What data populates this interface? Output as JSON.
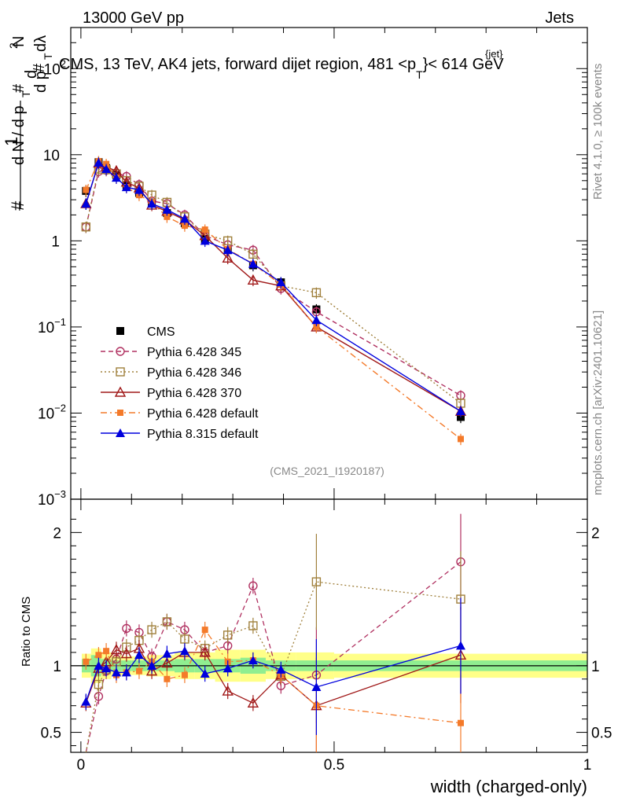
{
  "header": {
    "left": "13000 GeV pp",
    "right": "Jets",
    "subtitle_main": "CMS, 13 TeV, AK4 jets, forward dijet region, 481 <p",
    "subtitle_sup": "{jet}",
    "subtitle_sub": "T",
    "subtitle_tail": "}< 614 GeV"
  },
  "side": {
    "rivet": "Rivet 4.1.0, ≥ 100k events",
    "mcplots": "mcplots.cern.ch [arXiv:2401.10621]"
  },
  "analysis_id": "(CMS_2021_I1920187)",
  "colors": {
    "cms": "#000000",
    "p345": "#b03060",
    "p346": "#a0803c",
    "p370": "#a01818",
    "pdef": "#f47a2a",
    "p8": "#0000dd",
    "band_inner": "#90ee90",
    "band_outer": "#ffff88"
  },
  "chart_data": [
    {
      "type": "scatter",
      "panel": "main",
      "ylabel": "1/(dN/dp_T) · d²N/(dp_T dλ)",
      "yscale": "log",
      "ylim": [
        0.001,
        300
      ],
      "yticks": [
        {
          "v": 0.001,
          "mant": "10",
          "exp": "−3"
        },
        {
          "v": 0.01,
          "mant": "10",
          "exp": "−2"
        },
        {
          "v": 0.1,
          "mant": "10",
          "exp": "−1"
        },
        {
          "v": 1,
          "mant": "1",
          "exp": ""
        },
        {
          "v": 10,
          "mant": "10",
          "exp": ""
        },
        {
          "v": 100,
          "mant": "10",
          "exp": "2"
        }
      ],
      "x": [
        0.01,
        0.035,
        0.05,
        0.07,
        0.09,
        0.115,
        0.14,
        0.17,
        0.205,
        0.245,
        0.29,
        0.34,
        0.395,
        0.465,
        0.75
      ],
      "series": [
        {
          "name": "CMS",
          "key": "cms",
          "marker": "square-filled",
          "style": "none",
          "values": [
            3.8,
            8.2,
            7.0,
            5.8,
            4.4,
            3.6,
            2.7,
            2.1,
            1.6,
            1.05,
            0.78,
            0.52,
            0.33,
            0.16,
            0.009
          ]
        },
        {
          "name": "Pythia 6.428 345",
          "key": "p345",
          "marker": "circle-open",
          "style": "dashed",
          "values": [
            1.45,
            6.4,
            6.6,
            6.1,
            5.6,
            4.5,
            2.9,
            2.7,
            2.0,
            1.15,
            0.9,
            0.78,
            0.28,
            0.15,
            0.016
          ]
        },
        {
          "name": "Pythia 6.428 346",
          "key": "p346",
          "marker": "square-open",
          "style": "dotted",
          "values": [
            1.45,
            6.8,
            6.7,
            6.0,
            5.0,
            4.3,
            3.4,
            2.8,
            1.9,
            1.2,
            1.0,
            0.7,
            0.3,
            0.25,
            0.013
          ]
        },
        {
          "name": "Pythia 6.428 370",
          "key": "p370",
          "marker": "triangle-open",
          "style": "solid",
          "values": [
            2.7,
            8.0,
            7.2,
            6.5,
            4.8,
            4.1,
            2.6,
            2.2,
            1.75,
            1.15,
            0.63,
            0.35,
            0.3,
            0.1,
            0.0105
          ]
        },
        {
          "name": "Pythia 6.428 default",
          "key": "pdef",
          "marker": "square-small-filled",
          "style": "dashdot",
          "values": [
            3.9,
            8.4,
            7.8,
            5.4,
            4.2,
            3.4,
            2.8,
            1.9,
            1.5,
            1.35,
            0.8,
            0.54,
            0.31,
            0.1,
            0.005
          ]
        },
        {
          "name": "Pythia 8.315 default",
          "key": "p8",
          "marker": "triangle-filled",
          "style": "solid",
          "values": [
            2.7,
            8.1,
            6.8,
            5.4,
            4.2,
            3.9,
            2.7,
            2.3,
            1.8,
            1.0,
            0.78,
            0.54,
            0.33,
            0.12,
            0.0105
          ]
        }
      ]
    },
    {
      "type": "scatter",
      "panel": "ratio",
      "ylabel": "Ratio to CMS",
      "xlabel": "width (charged-only)",
      "xlim": [
        -0.02,
        1.0
      ],
      "ylim": [
        0.35,
        2.25
      ],
      "xticks": [
        {
          "v": 0,
          "label": "0"
        },
        {
          "v": 0.5,
          "label": "0.5"
        },
        {
          "v": 1,
          "label": "1"
        }
      ],
      "yticks": [
        {
          "v": 0.5,
          "label": "0.5"
        },
        {
          "v": 1,
          "label": "1"
        },
        {
          "v": 2,
          "label": "2"
        }
      ],
      "x": [
        0.01,
        0.035,
        0.05,
        0.07,
        0.09,
        0.115,
        0.14,
        0.17,
        0.205,
        0.245,
        0.29,
        0.34,
        0.395,
        0.465,
        0.75
      ],
      "band_edges": [
        0,
        0.02,
        0.04,
        0.06,
        0.08,
        0.1,
        0.13,
        0.155,
        0.185,
        0.225,
        0.265,
        0.315,
        0.365,
        0.425,
        0.5,
        1.0
      ],
      "band_inner": [
        0.05,
        0.08,
        0.05,
        0.04,
        0.04,
        0.04,
        0.04,
        0.04,
        0.05,
        0.05,
        0.05,
        0.06,
        0.04,
        0.04,
        0.04
      ],
      "band_outer": [
        0.09,
        0.13,
        0.1,
        0.08,
        0.07,
        0.07,
        0.08,
        0.08,
        0.1,
        0.1,
        0.12,
        0.12,
        0.1,
        0.1,
        0.09
      ],
      "series": [
        {
          "key": "p345",
          "style": "dashed",
          "values": [
            0.3,
            0.77,
            0.96,
            1.05,
            1.28,
            1.25,
            1.07,
            1.33,
            1.27,
            1.1,
            1.15,
            1.6,
            0.85,
            0.93,
            1.78
          ]
        },
        {
          "key": "p346",
          "style": "dotted",
          "values": [
            0.3,
            0.86,
            0.97,
            1.03,
            1.14,
            1.19,
            1.27,
            1.33,
            1.2,
            1.13,
            1.23,
            1.3,
            0.92,
            1.63,
            1.5
          ]
        },
        {
          "key": "p370",
          "style": "solid",
          "values": [
            0.72,
            0.98,
            1.03,
            1.12,
            1.09,
            1.13,
            0.96,
            1.02,
            1.1,
            1.1,
            0.81,
            0.72,
            0.93,
            0.7,
            1.08
          ]
        },
        {
          "key": "pdef",
          "style": "dashdot",
          "values": [
            1.03,
            1.08,
            1.11,
            0.93,
            0.95,
            0.96,
            1.03,
            0.9,
            0.93,
            1.27,
            1.03,
            1.04,
            0.93,
            0.7,
            0.57
          ]
        },
        {
          "key": "p8",
          "style": "solid",
          "values": [
            0.73,
            1.0,
            0.98,
            0.95,
            0.95,
            1.08,
            1.0,
            1.09,
            1.11,
            0.94,
            0.98,
            1.04,
            0.97,
            0.84,
            1.15
          ]
        }
      ]
    }
  ]
}
